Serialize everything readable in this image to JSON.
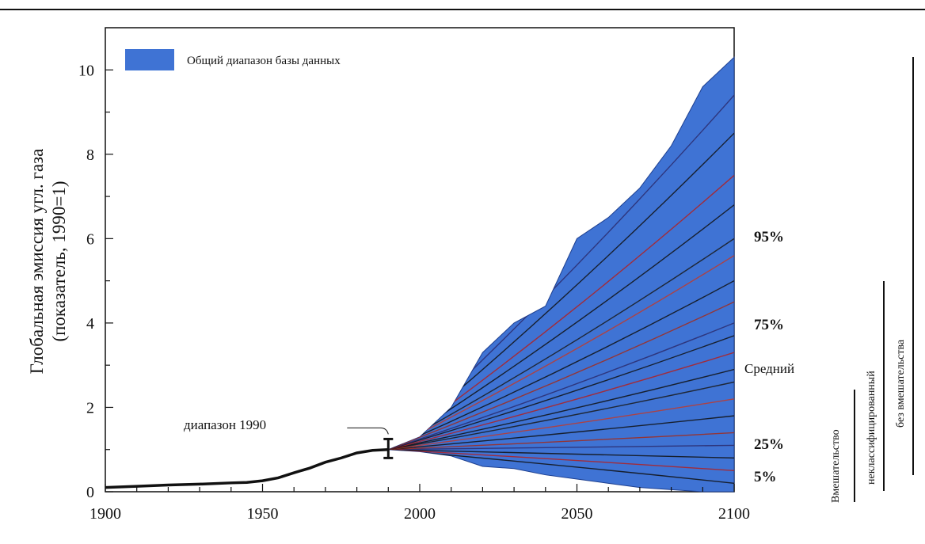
{
  "chart_data": {
    "type": "area",
    "xlim": [
      1900,
      2100
    ],
    "ylim": [
      0,
      11
    ],
    "x_ticks": [
      1900,
      1950,
      2000,
      2050,
      2100
    ],
    "y_ticks": [
      0,
      2,
      4,
      6,
      8,
      10
    ],
    "ylabel_line1": "Глобальная эмиссия угл. газа",
    "ylabel_line2": "(показатель, 1990=1)",
    "legend": {
      "label": "Общий диапазон базы данных",
      "position": "top-left",
      "color": "#3f73d4"
    },
    "historical": {
      "x": [
        1900,
        1910,
        1920,
        1930,
        1940,
        1945,
        1950,
        1955,
        1960,
        1965,
        1970,
        1975,
        1980,
        1985,
        1990
      ],
      "y": [
        0.1,
        0.13,
        0.16,
        0.18,
        0.21,
        0.22,
        0.26,
        0.33,
        0.45,
        0.56,
        0.7,
        0.8,
        0.92,
        0.98,
        1.0
      ]
    },
    "range_1990": {
      "label": "диапазон 1990",
      "year": 1990,
      "low": 0.8,
      "high": 1.25
    },
    "database_range": {
      "x": [
        1990,
        2000,
        2010,
        2020,
        2030,
        2040,
        2050,
        2060,
        2070,
        2080,
        2090,
        2100
      ],
      "upper": [
        1.0,
        1.3,
        2.0,
        3.3,
        4.0,
        4.4,
        6.0,
        6.5,
        7.2,
        8.2,
        9.6,
        10.3
      ],
      "lower": [
        1.0,
        0.95,
        0.85,
        0.6,
        0.55,
        0.4,
        0.3,
        0.2,
        0.1,
        0.05,
        0.0,
        0.0
      ]
    },
    "percentiles": [
      {
        "label": "95%",
        "value_2100": 6.0
      },
      {
        "label": "75%",
        "value_2100": 4.0
      },
      {
        "label": "Средний",
        "value_2100": 2.9
      },
      {
        "label": "25%",
        "value_2100": 1.1
      },
      {
        "label": "5%",
        "value_2100": 0.3
      }
    ],
    "scenario_groups": [
      {
        "label": "Вмешательство"
      },
      {
        "label": "неклассифицированный"
      },
      {
        "label": "без вмешательства"
      }
    ]
  }
}
